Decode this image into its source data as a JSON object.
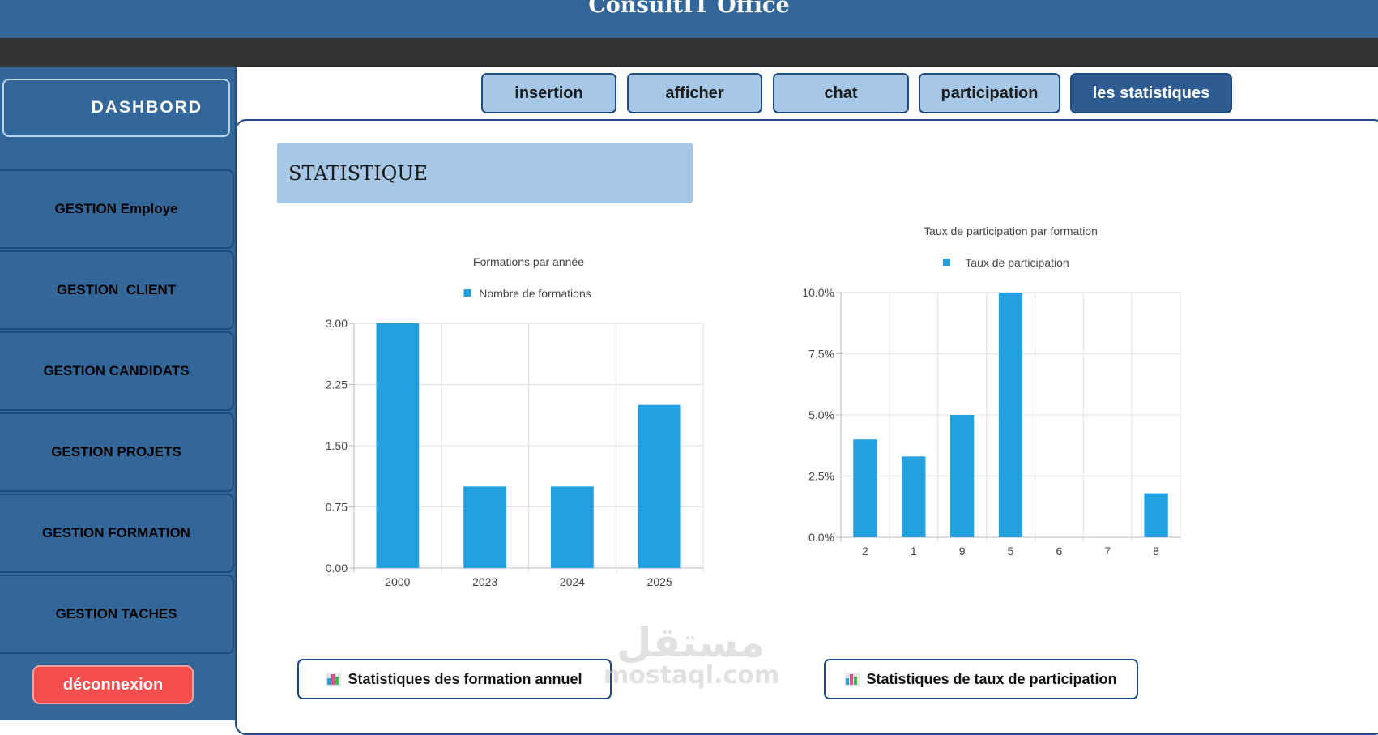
{
  "app": {
    "title": "ConsultIT Office"
  },
  "sidebar": {
    "dashboard_label": "DASHBORD",
    "items": [
      {
        "label": "GESTION Employe"
      },
      {
        "label": "GESTION  CLIENT"
      },
      {
        "label": "GESTION CANDIDATS"
      },
      {
        "label": "GESTION PROJETS"
      },
      {
        "label": "GESTION FORMATION"
      },
      {
        "label": "GESTION TACHES"
      }
    ],
    "logout_label": "déconnexion"
  },
  "tabs": [
    {
      "label": "insertion"
    },
    {
      "label": "afficher"
    },
    {
      "label": "chat"
    },
    {
      "label": "participation"
    },
    {
      "label": "les statistiques",
      "active": true
    }
  ],
  "main": {
    "header": "STATISTIQUE",
    "buttons": {
      "annual": "Statistiques des formation annuel",
      "participation": "Statistiques de taux de participation"
    }
  },
  "watermark": {
    "arabic": "مستقل",
    "latin": "mostaql.com"
  },
  "colors": {
    "bar": "#22a0df",
    "header_blue": "#336699",
    "tab_bg": "#a7c7e7",
    "logout": "#f44e4e"
  },
  "chart_data": [
    {
      "type": "bar",
      "title": "Formations par année",
      "legend": "Nombre de formations",
      "legend_position": "top",
      "categories": [
        "2000",
        "2023",
        "2024",
        "2025"
      ],
      "series": [
        {
          "name": "Nombre de formations",
          "values": [
            3,
            1,
            1,
            2
          ]
        }
      ],
      "ylim": [
        0,
        3
      ],
      "yticks": [
        "0.00",
        "0.75",
        "1.50",
        "2.25",
        "3.00"
      ],
      "grid": true
    },
    {
      "type": "bar",
      "title": "Taux de participation par formation",
      "legend": "Taux de participation",
      "legend_position": "top",
      "categories": [
        "2",
        "1",
        "9",
        "5",
        "6",
        "7",
        "8"
      ],
      "series": [
        {
          "name": "Taux de participation",
          "values": [
            4.0,
            3.3,
            5.0,
            10.0,
            0,
            0,
            1.8
          ]
        }
      ],
      "ylim": [
        0,
        10
      ],
      "yticks": [
        "0.0%",
        "2.5%",
        "5.0%",
        "7.5%",
        "10.0%"
      ],
      "grid": true
    }
  ]
}
